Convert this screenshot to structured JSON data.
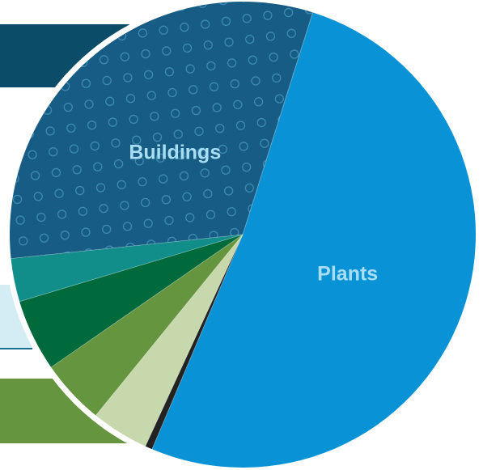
{
  "chart_data": {
    "type": "pie",
    "title": "",
    "start_angle_deg": 17.5,
    "direction": "clockwise",
    "slices": [
      {
        "label": "Plants",
        "value": 51.5,
        "color": "#0993d6",
        "show_label": true
      },
      {
        "label": "",
        "value": 0.5,
        "color": "#222222",
        "show_label": false
      },
      {
        "label": "",
        "value": 4.0,
        "color": "#c7d8ad",
        "show_label": false
      },
      {
        "label": "",
        "value": 4.5,
        "color": "#66953f",
        "show_label": false
      },
      {
        "label": "",
        "value": 5.0,
        "color": "#006a3c",
        "show_label": false
      },
      {
        "label": "",
        "value": 3.0,
        "color": "#118e8a",
        "show_label": false
      },
      {
        "label": "Buildings",
        "value": 31.5,
        "color": "#165c84",
        "show_label": true,
        "patterned": true
      }
    ]
  },
  "colors": {
    "band_top": "#0b4d68",
    "band_mid": "#d4ecf3",
    "band_bottom": "#66953f",
    "label_text": "#a9def2",
    "pattern_dot": "#3f8db5"
  }
}
